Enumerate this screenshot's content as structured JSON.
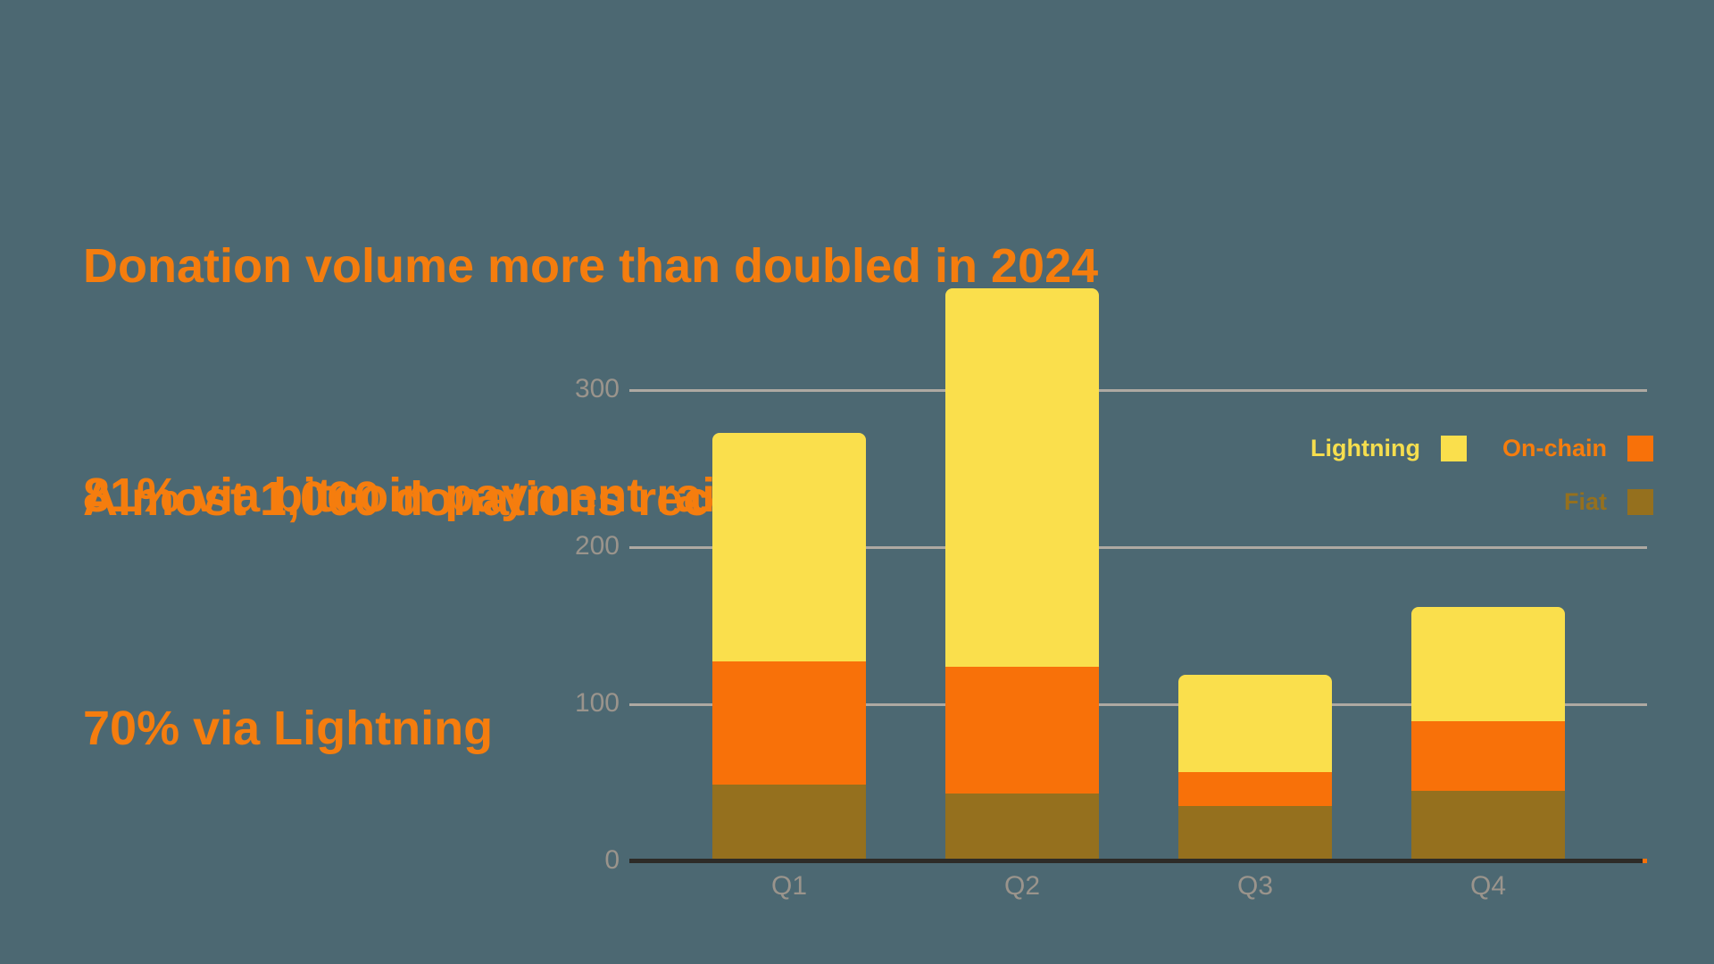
{
  "background_color": "#4C6872",
  "accent_color": "#F57D0E",
  "headline": {
    "line1": "Donation volume more than doubled in 2024",
    "line2": "Almost 1,000 donations received",
    "line3": "81% via bitcoin payment rails",
    "line4": "70% via Lightning"
  },
  "chart_data": {
    "type": "bar",
    "stacked": true,
    "title": "",
    "xlabel": "",
    "ylabel": "",
    "categories": [
      "Q1",
      "Q2",
      "Q3",
      "Q4"
    ],
    "series": [
      {
        "name": "Fiat",
        "color": "#95701E",
        "values": [
          49,
          43,
          35,
          45
        ]
      },
      {
        "name": "On-chain",
        "color": "#F87109",
        "values": [
          78,
          81,
          22,
          44
        ]
      },
      {
        "name": "Lightning",
        "color": "#FADF4C",
        "values": [
          146,
          241,
          62,
          73
        ]
      }
    ],
    "stack_totals": [
      273,
      365,
      119,
      162
    ],
    "y_ticks": [
      0,
      100,
      200,
      300
    ],
    "ylim": [
      0,
      375
    ],
    "grid": true,
    "legend_position": "upper-right",
    "legend": {
      "rows": [
        [
          {
            "label": "Lightning",
            "swatch_color": "#FADF4C",
            "text_color": "#F6DE4E"
          },
          {
            "label": "On-chain",
            "swatch_color": "#F87109",
            "text_color": "#F57D0E"
          }
        ],
        [
          {
            "label": "Fiat",
            "swatch_color": "#95701E",
            "text_color": "#95701E"
          }
        ]
      ]
    },
    "axis_style": {
      "tick_label_color": "#9A948C",
      "gridline_color": "#AEA9A2",
      "baseline_color": "#2D2B27"
    }
  }
}
